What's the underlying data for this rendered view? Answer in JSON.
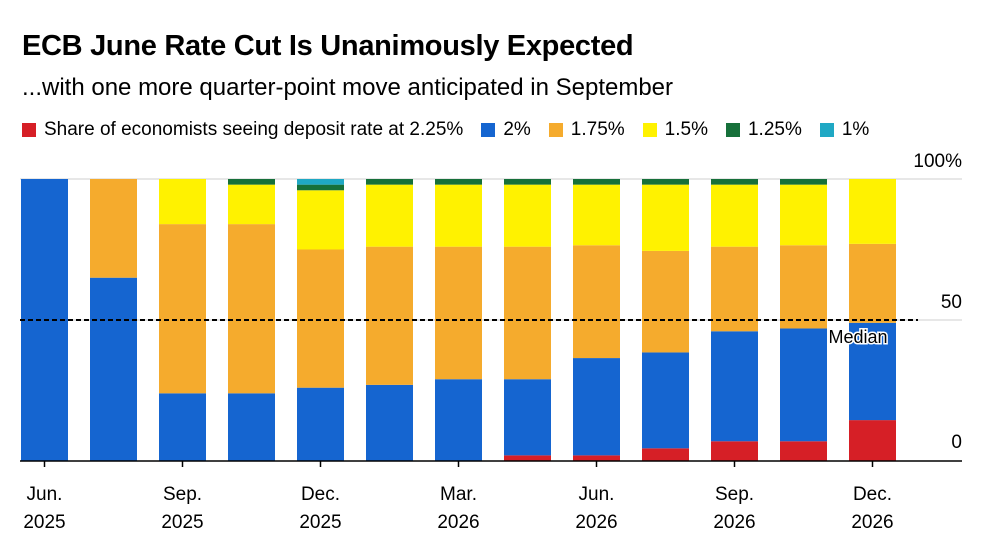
{
  "colors": {
    "2.25%": "#d61f26",
    "2%": "#1565d0",
    "1.75%": "#f5ab2d",
    "1.5%": "#fff200",
    "1.25%": "#16703a",
    "1%": "#1fa8c4"
  },
  "chart_data": {
    "type": "bar",
    "stacked": true,
    "title": "ECB June Rate Cut Is Unanimously Expected",
    "subtitle": "...with one more quarter-point move anticipated in September",
    "legend_entries": [
      {
        "key": "2.25%",
        "label": "Share of economists seeing deposit rate at 2.25%"
      },
      {
        "key": "2%",
        "label": "2%"
      },
      {
        "key": "1.75%",
        "label": "1.75%"
      },
      {
        "key": "1.5%",
        "label": "1.5%"
      },
      {
        "key": "1.25%",
        "label": "1.25%"
      },
      {
        "key": "1%",
        "label": "1%"
      }
    ],
    "ylim": [
      0,
      100
    ],
    "y_ticks": [
      {
        "value": 100,
        "label": "100%"
      },
      {
        "value": 50,
        "label": "50"
      },
      {
        "value": 0,
        "label": "0"
      }
    ],
    "x_tick_labels": [
      {
        "index": 0,
        "line1": "Jun.",
        "line2": "2025"
      },
      {
        "index": 2,
        "line1": "Sep.",
        "line2": "2025"
      },
      {
        "index": 4,
        "line1": "Dec.",
        "line2": "2025"
      },
      {
        "index": 6,
        "line1": "Mar.",
        "line2": "2026"
      },
      {
        "index": 8,
        "line1": "Jun.",
        "line2": "2026"
      },
      {
        "index": 10,
        "line1": "Sep.",
        "line2": "2026"
      },
      {
        "index": 12,
        "line1": "Dec.",
        "line2": "2026"
      }
    ],
    "median": {
      "value": 50,
      "label": "Median"
    },
    "series": [
      {
        "name": "2.25%",
        "values": [
          0,
          0,
          0,
          0,
          0,
          0,
          0,
          2,
          2,
          4.5,
          7,
          7,
          14.5
        ]
      },
      {
        "name": "2%",
        "values": [
          100,
          65,
          24,
          24,
          26,
          27,
          29,
          27,
          34.5,
          34,
          39,
          40,
          34.5
        ]
      },
      {
        "name": "1.75%",
        "values": [
          0,
          35,
          60,
          60,
          49,
          49,
          47,
          47,
          40,
          36,
          30,
          29.5,
          28
        ]
      },
      {
        "name": "1.5%",
        "values": [
          0,
          0,
          16,
          14,
          21,
          22,
          22,
          22,
          21.5,
          23.5,
          22,
          21.5,
          23
        ]
      },
      {
        "name": "1.25%",
        "values": [
          0,
          0,
          0,
          2,
          2,
          2,
          2,
          2,
          2,
          2,
          2,
          2,
          0
        ]
      },
      {
        "name": "1%",
        "values": [
          0,
          0,
          0,
          0,
          2,
          0,
          0,
          0,
          0,
          0,
          0,
          0,
          0
        ]
      }
    ]
  }
}
